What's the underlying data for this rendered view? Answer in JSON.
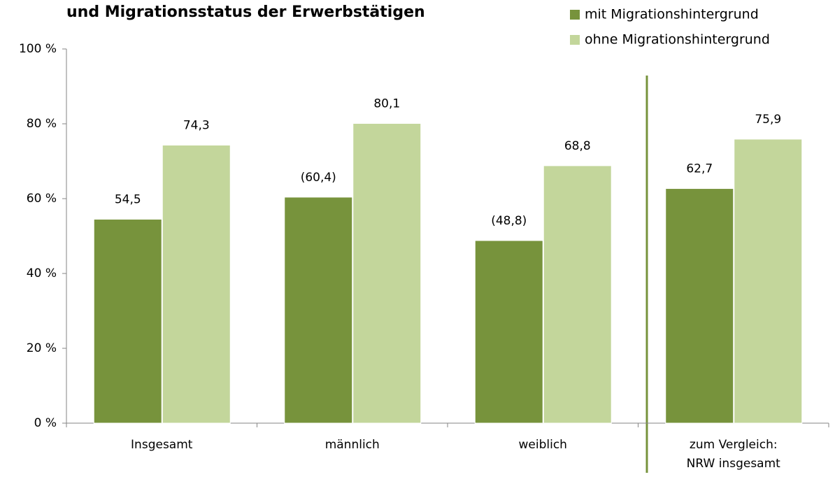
{
  "chart_data": {
    "type": "bar",
    "title": "und Migrationsstatus der Erwerbstätigen",
    "categories": [
      "Insgesamt",
      "männlich",
      "weiblich",
      "zum Vergleich:\nNRW insgesamt"
    ],
    "series": [
      {
        "name": "mit Migrationshintergrund",
        "color": "#77933c",
        "values": [
          54.5,
          60.4,
          48.8,
          62.7
        ],
        "value_labels": [
          "54,5",
          "(60,4)",
          "(48,8)",
          "62,7"
        ]
      },
      {
        "name": "ohne Migrationshintergrund",
        "color": "#c3d69b",
        "values": [
          74.3,
          80.1,
          68.8,
          75.9
        ],
        "value_labels": [
          "74,3",
          "80,1",
          "68,8",
          "75,9"
        ]
      }
    ],
    "ylim": [
      0,
      100
    ],
    "yticks": [
      {
        "value": 0,
        "label": "0 %"
      },
      {
        "value": 20,
        "label": "20 %"
      },
      {
        "value": 40,
        "label": "40 %"
      },
      {
        "value": 60,
        "label": "60 %"
      },
      {
        "value": 80,
        "label": "80 %"
      },
      {
        "value": 100,
        "label": "100 %"
      }
    ],
    "legend": "top-right"
  }
}
